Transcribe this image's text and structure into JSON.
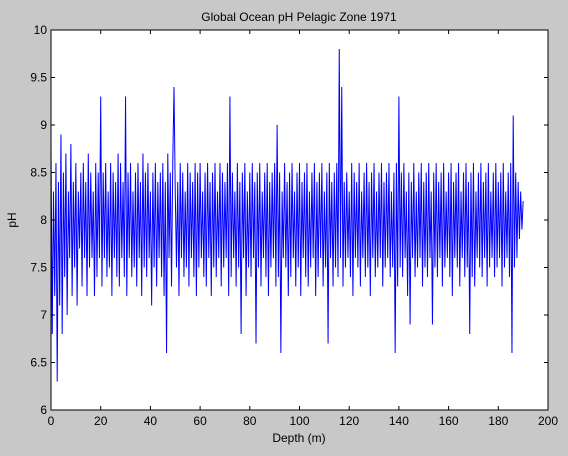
{
  "chart_data": {
    "type": "line",
    "title": "Global Ocean pH Pelagic Zone 1971",
    "xlabel": "Depth (m)",
    "ylabel": "pH",
    "xlim": [
      0,
      200
    ],
    "ylim": [
      6,
      10
    ],
    "xticks": [
      0,
      20,
      40,
      60,
      80,
      100,
      120,
      140,
      160,
      180,
      200
    ],
    "yticks": [
      6,
      6.5,
      7,
      7.5,
      8,
      8.5,
      9,
      9.5,
      10
    ],
    "ytick_labels": [
      "6",
      "6.5",
      "7",
      "7.5",
      "8",
      "8.5",
      "9",
      "9.5",
      "10"
    ],
    "grid": false,
    "legend": "none",
    "series_color": "#0000ff",
    "x_start": 0,
    "x_step": 0.5,
    "series": [
      {
        "values": [
          8.8,
          6.8,
          8.3,
          7.2,
          8.6,
          6.3,
          8.4,
          7.1,
          8.9,
          6.8,
          8.5,
          7.4,
          8.7,
          7.0,
          8.3,
          7.6,
          8.8,
          7.2,
          8.4,
          7.5,
          8.6,
          7.1,
          8.3,
          7.7,
          8.5,
          7.3,
          8.6,
          7.6,
          8.4,
          7.2,
          8.7,
          7.5,
          8.5,
          7.6,
          8.3,
          7.2,
          8.6,
          7.4,
          8.5,
          7.6,
          9.3,
          7.3,
          8.5,
          7.6,
          8.6,
          7.4,
          8.3,
          7.5,
          8.6,
          7.2,
          8.5,
          7.6,
          8.4,
          7.4,
          8.7,
          7.3,
          8.6,
          7.6,
          8.4,
          7.4,
          9.3,
          7.2,
          8.5,
          7.6,
          8.6,
          7.4,
          8.3,
          7.5,
          8.5,
          7.3,
          8.6,
          7.6,
          8.4,
          7.2,
          8.7,
          7.5,
          8.5,
          7.4,
          8.6,
          7.6,
          8.3,
          7.1,
          8.5,
          7.5,
          8.6,
          7.3,
          8.4,
          7.6,
          8.5,
          7.4,
          8.6,
          7.2,
          8.4,
          6.6,
          8.7,
          7.6,
          8.5,
          7.3,
          8.6,
          9.4,
          8.3,
          7.5,
          8.4,
          7.2,
          8.6,
          7.6,
          8.5,
          7.4,
          8.3,
          7.5,
          8.6,
          7.3,
          8.5,
          7.6,
          8.4,
          7.4,
          8.6,
          7.2,
          8.5,
          7.5,
          8.6,
          7.6,
          8.3,
          7.4,
          8.5,
          7.3,
          8.6,
          7.6,
          8.4,
          7.2,
          8.5,
          7.5,
          8.6,
          7.4,
          8.3,
          7.6,
          8.6,
          7.3,
          8.5,
          7.5,
          8.4,
          7.6,
          8.6,
          7.2,
          9.3,
          7.4,
          8.5,
          7.6,
          8.3,
          7.3,
          8.6,
          7.5,
          8.4,
          6.8,
          8.5,
          7.6,
          8.6,
          7.2,
          8.3,
          7.5,
          8.5,
          7.4,
          8.6,
          7.6,
          8.4,
          6.7,
          8.5,
          7.5,
          8.6,
          7.3,
          8.3,
          7.6,
          8.5,
          7.4,
          8.6,
          7.2,
          8.4,
          7.5,
          8.5,
          7.6,
          8.6,
          7.3,
          9.0,
          7.4,
          8.5,
          6.6,
          8.3,
          7.6,
          8.6,
          7.5,
          8.4,
          7.2,
          8.5,
          7.4,
          8.6,
          7.6,
          8.3,
          7.3,
          8.5,
          7.5,
          8.6,
          7.2,
          8.4,
          7.6,
          8.5,
          7.4,
          8.6,
          7.3,
          8.3,
          7.5,
          8.5,
          7.6,
          8.6,
          7.2,
          8.4,
          7.4,
          8.5,
          7.6,
          8.6,
          7.3,
          8.3,
          7.5,
          8.5,
          6.7,
          8.6,
          7.6,
          8.4,
          7.3,
          8.5,
          7.5,
          8.6,
          7.4,
          9.8,
          7.6,
          9.4,
          7.3,
          8.4,
          7.5,
          8.5,
          7.6,
          8.3,
          7.4,
          8.6,
          7.2,
          8.5,
          7.6,
          8.4,
          7.5,
          8.6,
          7.3,
          8.3,
          7.6,
          8.5,
          7.4,
          8.6,
          7.5,
          8.4,
          7.2,
          8.5,
          7.6,
          8.6,
          7.4,
          8.3,
          7.5,
          8.5,
          7.6,
          8.6,
          7.3,
          8.4,
          7.5,
          8.5,
          7.6,
          8.6,
          7.4,
          8.3,
          7.5,
          8.5,
          6.6,
          8.6,
          7.3,
          9.3,
          7.5,
          8.5,
          7.4,
          8.6,
          7.6,
          8.3,
          7.2,
          8.5,
          6.9,
          8.4,
          7.6,
          8.6,
          7.4,
          8.3,
          7.5,
          8.5,
          7.6,
          8.6,
          7.3,
          8.4,
          7.5,
          8.5,
          7.4,
          8.6,
          7.6,
          8.3,
          6.9,
          8.5,
          7.5,
          8.6,
          7.4,
          8.4,
          7.6,
          8.5,
          7.3,
          8.6,
          7.5,
          8.3,
          7.6,
          8.5,
          7.4,
          8.6,
          7.2,
          8.4,
          7.6,
          8.5,
          7.5,
          8.6,
          7.3,
          8.3,
          7.6,
          8.5,
          7.4,
          8.6,
          7.5,
          8.4,
          6.8,
          8.5,
          7.4,
          8.6,
          7.3,
          8.3,
          7.6,
          8.5,
          7.5,
          8.6,
          7.4,
          8.4,
          7.6,
          8.5,
          7.3,
          8.6,
          7.5,
          8.3,
          7.6,
          8.5,
          7.4,
          8.6,
          7.5,
          8.4,
          7.6,
          8.5,
          7.3,
          8.6,
          7.5,
          8.3,
          7.6,
          8.5,
          7.4,
          8.6,
          6.6,
          9.1,
          7.5,
          8.5,
          7.6,
          8.4,
          7.8,
          8.3,
          7.9,
          8.2
        ]
      }
    ]
  }
}
